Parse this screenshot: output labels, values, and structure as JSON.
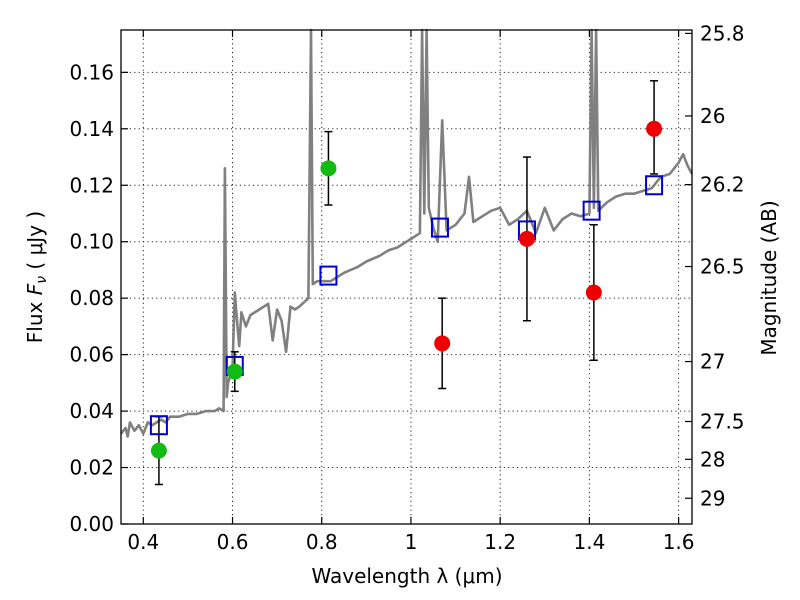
{
  "chart_data": {
    "type": "scatter",
    "xlabel": "Wavelength  λ (μm)",
    "ylabel": "Flux  F_ν  ( μJy )",
    "ylabel_parts": {
      "prefix": "Flux ",
      "symbol": "F",
      "subscript": "ν",
      "units": "  ( μJy )"
    },
    "right_ylabel": "Magnitude (AB)",
    "xlim": [
      0.35,
      1.63
    ],
    "ylim": [
      0.0,
      0.175
    ],
    "x_ticks": [
      0.4,
      0.6,
      0.8,
      1.0,
      1.2,
      1.4,
      1.6
    ],
    "x_tick_labels": [
      "0.4",
      "0.6",
      "0.8",
      "1",
      "1.2",
      "1.4",
      "1.6"
    ],
    "y_ticks": [
      0.0,
      0.02,
      0.04,
      0.06,
      0.08,
      0.1,
      0.12,
      0.14,
      0.16
    ],
    "y_tick_labels": [
      "0.00",
      "0.02",
      "0.04",
      "0.06",
      "0.08",
      "0.10",
      "0.12",
      "0.14",
      "0.16"
    ],
    "right_ticks": [
      {
        "mag": 25.8,
        "label": "25.8"
      },
      {
        "mag": 26.0,
        "label": "26"
      },
      {
        "mag": 26.2,
        "label": "26.2"
      },
      {
        "mag": 26.5,
        "label": "26.5"
      },
      {
        "mag": 27.0,
        "label": "27"
      },
      {
        "mag": 27.5,
        "label": "27.5"
      },
      {
        "mag": 28.0,
        "label": "28"
      },
      {
        "mag": 29.0,
        "label": "29"
      }
    ],
    "grid": true,
    "colors": {
      "spectrum": "#808080",
      "model": "#0000cc",
      "green": "#11bb11",
      "red": "#ee0000",
      "errorbar": "#000000"
    },
    "spectrum": [
      [
        0.35,
        0.032
      ],
      [
        0.36,
        0.034
      ],
      [
        0.365,
        0.031
      ],
      [
        0.37,
        0.036
      ],
      [
        0.38,
        0.033
      ],
      [
        0.39,
        0.035
      ],
      [
        0.4,
        0.032
      ],
      [
        0.41,
        0.036
      ],
      [
        0.42,
        0.035
      ],
      [
        0.43,
        0.036
      ],
      [
        0.44,
        0.037
      ],
      [
        0.45,
        0.036
      ],
      [
        0.46,
        0.038
      ],
      [
        0.48,
        0.038
      ],
      [
        0.5,
        0.039
      ],
      [
        0.52,
        0.039
      ],
      [
        0.54,
        0.04
      ],
      [
        0.56,
        0.04
      ],
      [
        0.57,
        0.041
      ],
      [
        0.58,
        0.04
      ],
      [
        0.583,
        0.126
      ],
      [
        0.587,
        0.045
      ],
      [
        0.59,
        0.05
      ],
      [
        0.6,
        0.055
      ],
      [
        0.605,
        0.082
      ],
      [
        0.61,
        0.072
      ],
      [
        0.615,
        0.063
      ],
      [
        0.62,
        0.075
      ],
      [
        0.63,
        0.07
      ],
      [
        0.64,
        0.074
      ],
      [
        0.66,
        0.076
      ],
      [
        0.68,
        0.078
      ],
      [
        0.69,
        0.065
      ],
      [
        0.7,
        0.076
      ],
      [
        0.71,
        0.072
      ],
      [
        0.72,
        0.061
      ],
      [
        0.73,
        0.077
      ],
      [
        0.74,
        0.076
      ],
      [
        0.75,
        0.077
      ],
      [
        0.77,
        0.08
      ],
      [
        0.776,
        0.175
      ],
      [
        0.78,
        0.085
      ],
      [
        0.79,
        0.086
      ],
      [
        0.82,
        0.086
      ],
      [
        0.85,
        0.089
      ],
      [
        0.88,
        0.091
      ],
      [
        0.9,
        0.093
      ],
      [
        0.93,
        0.095
      ],
      [
        0.95,
        0.097
      ],
      [
        0.97,
        0.098
      ],
      [
        0.99,
        0.1
      ],
      [
        1.0,
        0.101
      ],
      [
        1.02,
        0.103
      ],
      [
        1.025,
        0.175
      ],
      [
        1.03,
        0.11
      ],
      [
        1.035,
        0.175
      ],
      [
        1.04,
        0.112
      ],
      [
        1.05,
        0.105
      ],
      [
        1.06,
        0.1
      ],
      [
        1.07,
        0.143
      ],
      [
        1.08,
        0.104
      ],
      [
        1.1,
        0.106
      ],
      [
        1.12,
        0.11
      ],
      [
        1.13,
        0.123
      ],
      [
        1.14,
        0.107
      ],
      [
        1.16,
        0.109
      ],
      [
        1.18,
        0.111
      ],
      [
        1.2,
        0.112
      ],
      [
        1.22,
        0.106
      ],
      [
        1.24,
        0.108
      ],
      [
        1.26,
        0.111
      ],
      [
        1.28,
        0.103
      ],
      [
        1.3,
        0.112
      ],
      [
        1.32,
        0.104
      ],
      [
        1.34,
        0.108
      ],
      [
        1.36,
        0.11
      ],
      [
        1.38,
        0.109
      ],
      [
        1.4,
        0.11
      ],
      [
        1.405,
        0.175
      ],
      [
        1.41,
        0.112
      ],
      [
        1.415,
        0.175
      ],
      [
        1.42,
        0.111
      ],
      [
        1.44,
        0.114
      ],
      [
        1.46,
        0.116
      ],
      [
        1.48,
        0.117
      ],
      [
        1.5,
        0.117
      ],
      [
        1.52,
        0.118
      ],
      [
        1.54,
        0.119
      ],
      [
        1.56,
        0.123
      ],
      [
        1.58,
        0.124
      ],
      [
        1.6,
        0.128
      ],
      [
        1.61,
        0.131
      ],
      [
        1.62,
        0.127
      ],
      [
        1.63,
        0.124
      ]
    ],
    "model_points": [
      {
        "x": 0.435,
        "y": 0.035
      },
      {
        "x": 0.605,
        "y": 0.056
      },
      {
        "x": 0.815,
        "y": 0.088
      },
      {
        "x": 1.065,
        "y": 0.105
      },
      {
        "x": 1.26,
        "y": 0.104
      },
      {
        "x": 1.405,
        "y": 0.111
      },
      {
        "x": 1.545,
        "y": 0.12
      }
    ],
    "green_points": [
      {
        "x": 0.435,
        "y": 0.026,
        "ylo": 0.014,
        "yhi": 0.038
      },
      {
        "x": 0.605,
        "y": 0.054,
        "ylo": 0.047,
        "yhi": 0.061
      },
      {
        "x": 0.815,
        "y": 0.126,
        "ylo": 0.113,
        "yhi": 0.139
      }
    ],
    "red_points": [
      {
        "x": 1.07,
        "y": 0.064,
        "ylo": 0.048,
        "yhi": 0.08
      },
      {
        "x": 1.26,
        "y": 0.101,
        "ylo": 0.072,
        "yhi": 0.13
      },
      {
        "x": 1.41,
        "y": 0.082,
        "ylo": 0.058,
        "yhi": 0.106
      },
      {
        "x": 1.545,
        "y": 0.14,
        "ylo": 0.124,
        "yhi": 0.157
      }
    ]
  }
}
